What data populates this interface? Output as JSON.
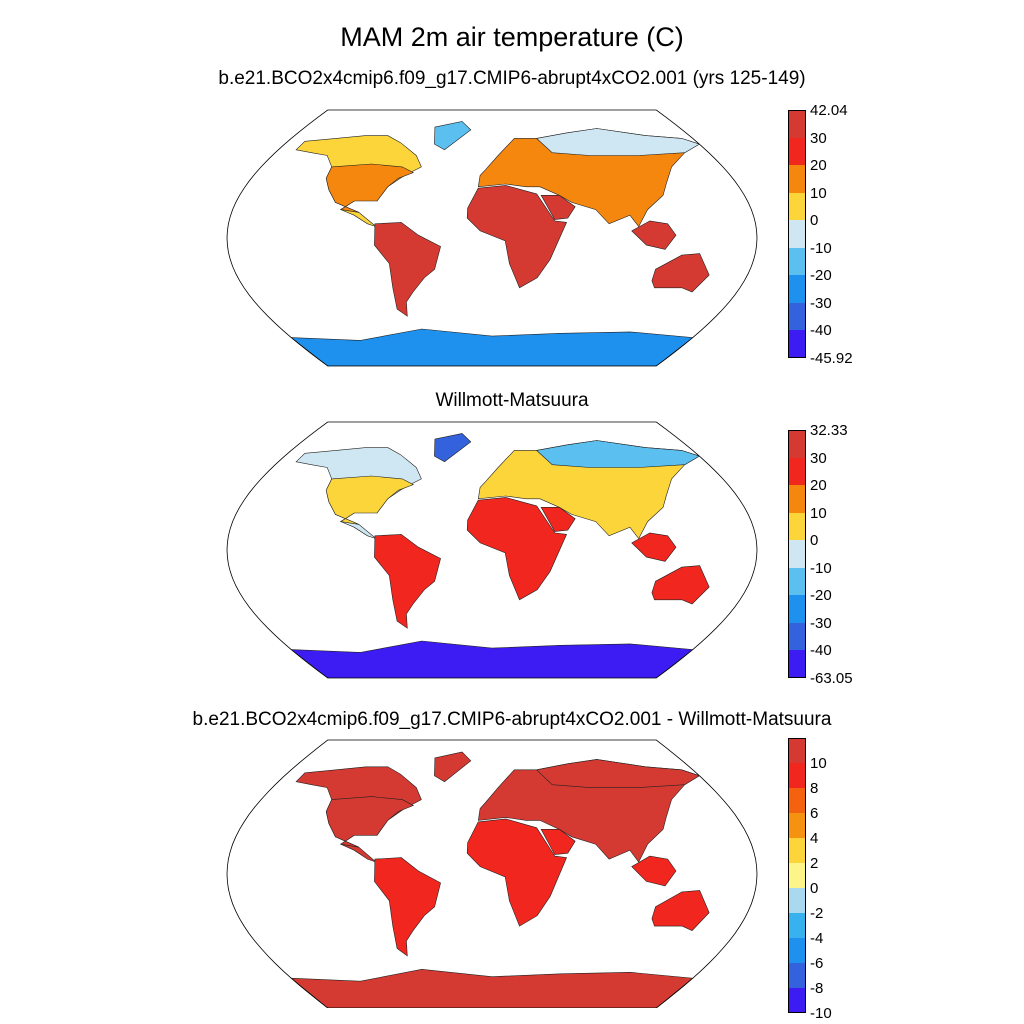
{
  "title": "MAM 2m air temperature (C)",
  "panels": [
    {
      "title": "b.e21.BCO2x4cmip6.f09_g17.CMIP6-abrupt4xCO2.001 (yrs 125-149)",
      "colorbar": {
        "labels": [
          "42.04",
          "30",
          "20",
          "10",
          "0",
          "-10",
          "-20",
          "-30",
          "-40",
          "-45.92"
        ],
        "colors": [
          "#d53a32",
          "#f0261f",
          "#f5870f",
          "#fcd53a",
          "#cfe7f2",
          "#5bc0ef",
          "#1e91ee",
          "#3462dd",
          "#3c1cf2"
        ]
      },
      "regions": {
        "arctic": "#fcd53a",
        "north_mid": "#f5870f",
        "tropics": "#d53a32",
        "antarctic": "#1e91ee",
        "greenland": "#5bc0ef",
        "siberia": "#cfe7f2"
      }
    },
    {
      "title": "Willmott-Matsuura",
      "colorbar": {
        "labels": [
          "32.33",
          "30",
          "20",
          "10",
          "0",
          "-10",
          "-20",
          "-30",
          "-40",
          "-63.05"
        ],
        "colors": [
          "#d53a32",
          "#f0261f",
          "#f5870f",
          "#fcd53a",
          "#cfe7f2",
          "#5bc0ef",
          "#1e91ee",
          "#3462dd",
          "#3c1cf2"
        ]
      },
      "regions": {
        "arctic": "#cfe7f2",
        "north_mid": "#fcd53a",
        "tropics": "#f0261f",
        "antarctic": "#3c1cf2",
        "greenland": "#3462dd",
        "siberia": "#5bc0ef"
      }
    },
    {
      "title": "b.e21.BCO2x4cmip6.f09_g17.CMIP6-abrupt4xCO2.001 - Willmott-Matsuura",
      "colorbar": {
        "labels": [
          "10",
          "8",
          "6",
          "4",
          "2",
          "0",
          "-2",
          "-4",
          "-6",
          "-8",
          "-10"
        ],
        "colors": [
          "#d53a32",
          "#f0261f",
          "#f5620f",
          "#f5920f",
          "#fcd53a",
          "#fdf58a",
          "#a9d8ef",
          "#38b2ee",
          "#1e91ee",
          "#3462dd",
          "#3c1cf2"
        ]
      },
      "regions": {
        "arctic": "#d53a32",
        "north_mid": "#d53a32",
        "tropics": "#f0261f",
        "antarctic": "#d53a32",
        "greenland": "#d53a32",
        "siberia": "#d53a32"
      }
    }
  ]
}
